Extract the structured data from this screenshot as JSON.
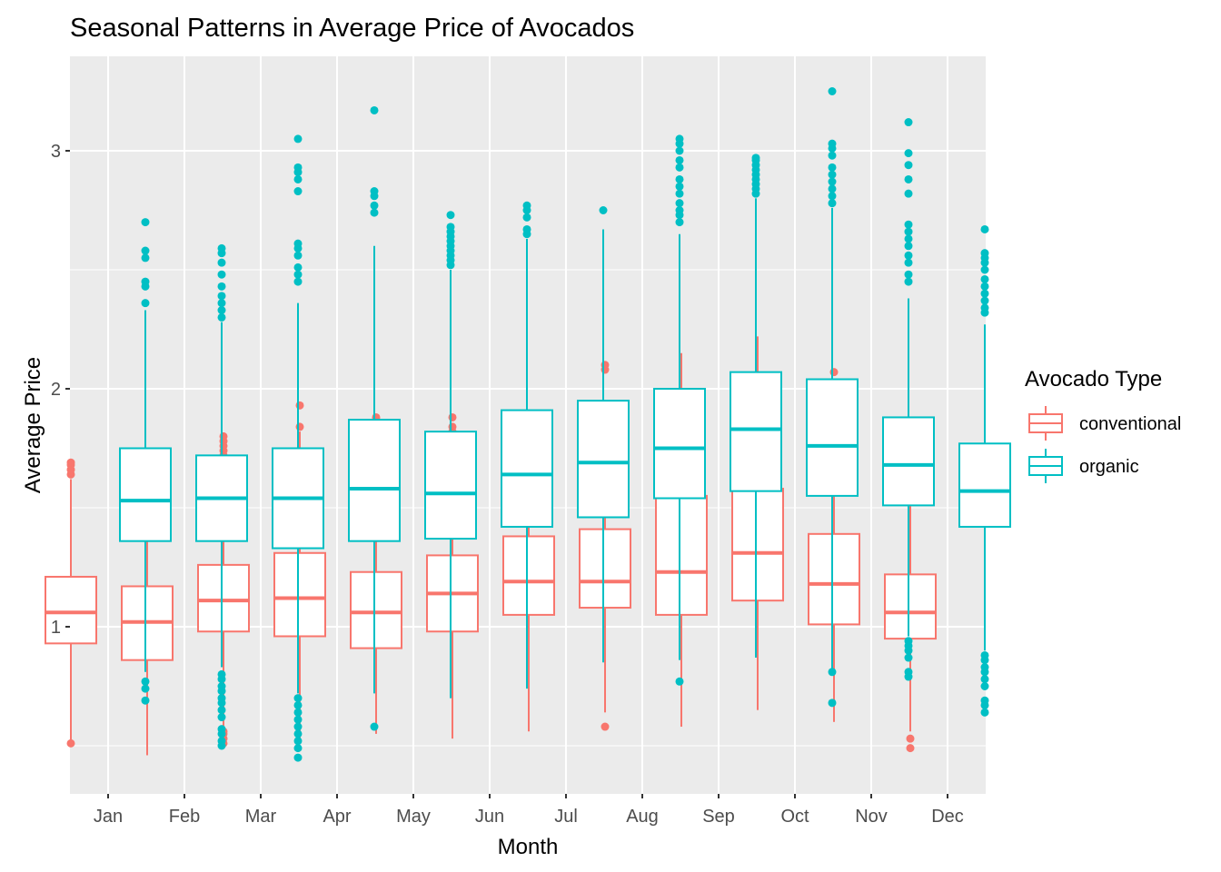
{
  "chart_data": {
    "type": "boxplot",
    "title": "Seasonal Patterns in Average Price of Avocados",
    "xlabel": "Month",
    "ylabel": "Average Price",
    "categories": [
      "Jan",
      "Feb",
      "Mar",
      "Apr",
      "May",
      "Jun",
      "Jul",
      "Aug",
      "Sep",
      "Oct",
      "Nov",
      "Dec"
    ],
    "y_ticks": [
      1,
      2,
      3
    ],
    "ylim": [
      0.42,
      3.35
    ],
    "grid": true,
    "legend": {
      "title": "Avocado Type",
      "position": "right"
    },
    "series": [
      {
        "name": "conventional",
        "color": "#F8766D",
        "boxes": [
          {
            "whisker_low": 0.52,
            "q1": 0.93,
            "median": 1.06,
            "q3": 1.21,
            "whisker_high": 1.62,
            "outliers": [
              0.51,
              1.64,
              1.66,
              1.68,
              1.69
            ]
          },
          {
            "whisker_low": 0.46,
            "q1": 0.86,
            "median": 1.02,
            "q3": 1.17,
            "whisker_high": 1.61,
            "outliers": [
              1.66,
              1.68,
              1.7,
              1.71
            ]
          },
          {
            "whisker_low": 0.52,
            "q1": 0.98,
            "median": 1.11,
            "q3": 1.26,
            "whisker_high": 1.66,
            "outliers": [
              0.51,
              0.53,
              0.55,
              0.56,
              1.68,
              1.7,
              1.72,
              1.74,
              1.76,
              1.78,
              1.8
            ]
          },
          {
            "whisker_low": 0.51,
            "q1": 0.96,
            "median": 1.12,
            "q3": 1.31,
            "whisker_high": 1.82,
            "outliers": [
              1.84,
              1.93
            ]
          },
          {
            "whisker_low": 0.55,
            "q1": 0.91,
            "median": 1.06,
            "q3": 1.23,
            "whisker_high": 1.71,
            "outliers": [
              1.73,
              1.75,
              1.77,
              1.79,
              1.81,
              1.83,
              1.85,
              1.87,
              1.88
            ]
          },
          {
            "whisker_low": 0.53,
            "q1": 0.98,
            "median": 1.14,
            "q3": 1.3,
            "whisker_high": 1.78,
            "outliers": [
              1.8,
              1.82,
              1.84,
              1.88
            ]
          },
          {
            "whisker_low": 0.56,
            "q1": 1.05,
            "median": 1.19,
            "q3": 1.38,
            "whisker_high": 1.76,
            "outliers": []
          },
          {
            "whisker_low": 0.64,
            "q1": 1.08,
            "median": 1.19,
            "q3": 1.41,
            "whisker_high": 1.89,
            "outliers": [
              0.58,
              1.93,
              2.08,
              2.1
            ]
          },
          {
            "whisker_low": 0.58,
            "q1": 1.05,
            "median": 1.23,
            "q3": 1.55,
            "whisker_high": 2.15,
            "outliers": []
          },
          {
            "whisker_low": 0.65,
            "q1": 1.11,
            "median": 1.31,
            "q3": 1.58,
            "whisker_high": 2.22,
            "outliers": []
          },
          {
            "whisker_low": 0.6,
            "q1": 1.01,
            "median": 1.18,
            "q3": 1.39,
            "whisker_high": 1.94,
            "outliers": [
              2.07
            ]
          },
          {
            "whisker_low": 0.56,
            "q1": 0.95,
            "median": 1.06,
            "q3": 1.22,
            "whisker_high": 1.62,
            "outliers": [
              0.49,
              0.53,
              1.65,
              1.66
            ]
          }
        ]
      },
      {
        "name": "organic",
        "color": "#00BFC4",
        "boxes": [
          {
            "whisker_low": 0.81,
            "q1": 1.36,
            "median": 1.53,
            "q3": 1.75,
            "whisker_high": 2.33,
            "outliers": [
              0.69,
              0.74,
              0.77,
              2.36,
              2.43,
              2.45,
              2.55,
              2.58,
              2.7
            ]
          },
          {
            "whisker_low": 0.83,
            "q1": 1.36,
            "median": 1.54,
            "q3": 1.72,
            "whisker_high": 2.28,
            "outliers": [
              0.5,
              0.52,
              0.55,
              0.57,
              0.62,
              0.65,
              0.68,
              0.7,
              0.73,
              0.75,
              0.78,
              0.8,
              2.3,
              2.33,
              2.36,
              2.39,
              2.43,
              2.48,
              2.53,
              2.57,
              2.59
            ]
          },
          {
            "whisker_low": 0.72,
            "q1": 1.33,
            "median": 1.54,
            "q3": 1.75,
            "whisker_high": 2.36,
            "outliers": [
              0.45,
              0.49,
              0.52,
              0.55,
              0.58,
              0.61,
              0.64,
              0.67,
              0.7,
              2.45,
              2.48,
              2.51,
              2.56,
              2.59,
              2.61,
              2.83,
              2.88,
              2.91,
              2.93,
              3.05
            ]
          },
          {
            "whisker_low": 0.72,
            "q1": 1.36,
            "median": 1.58,
            "q3": 1.87,
            "whisker_high": 2.6,
            "outliers": [
              0.58,
              2.74,
              2.77,
              2.81,
              2.83,
              3.17
            ]
          },
          {
            "whisker_low": 0.7,
            "q1": 1.37,
            "median": 1.56,
            "q3": 1.82,
            "whisker_high": 2.5,
            "outliers": [
              2.52,
              2.54,
              2.56,
              2.58,
              2.6,
              2.62,
              2.64,
              2.66,
              2.68,
              2.73
            ]
          },
          {
            "whisker_low": 0.74,
            "q1": 1.42,
            "median": 1.64,
            "q3": 1.91,
            "whisker_high": 2.63,
            "outliers": [
              2.65,
              2.67,
              2.72,
              2.75,
              2.77
            ]
          },
          {
            "whisker_low": 0.85,
            "q1": 1.46,
            "median": 1.69,
            "q3": 1.95,
            "whisker_high": 2.67,
            "outliers": [
              2.75
            ]
          },
          {
            "whisker_low": 0.86,
            "q1": 1.54,
            "median": 1.75,
            "q3": 2.0,
            "whisker_high": 2.65,
            "outliers": [
              0.77,
              2.7,
              2.73,
              2.75,
              2.78,
              2.82,
              2.85,
              2.88,
              2.93,
              2.96,
              3.0,
              3.03,
              3.05
            ]
          },
          {
            "whisker_low": 0.87,
            "q1": 1.57,
            "median": 1.83,
            "q3": 2.07,
            "whisker_high": 2.8,
            "outliers": [
              2.82,
              2.84,
              2.86,
              2.88,
              2.9,
              2.92,
              2.94,
              2.96,
              2.97
            ]
          },
          {
            "whisker_low": 0.82,
            "q1": 1.55,
            "median": 1.76,
            "q3": 2.04,
            "whisker_high": 2.76,
            "outliers": [
              0.68,
              0.81,
              2.78,
              2.81,
              2.84,
              2.87,
              2.9,
              2.93,
              2.98,
              3.01,
              3.03,
              3.25
            ]
          },
          {
            "whisker_low": 0.96,
            "q1": 1.51,
            "median": 1.68,
            "q3": 1.88,
            "whisker_high": 2.38,
            "outliers": [
              0.79,
              0.81,
              0.87,
              0.9,
              0.92,
              0.94,
              2.45,
              2.48,
              2.53,
              2.56,
              2.6,
              2.63,
              2.66,
              2.69,
              2.82,
              2.88,
              2.94,
              2.99,
              3.12
            ]
          },
          {
            "whisker_low": 0.9,
            "q1": 1.42,
            "median": 1.57,
            "q3": 1.77,
            "whisker_high": 2.27,
            "outliers": [
              0.64,
              0.67,
              0.69,
              0.75,
              0.78,
              0.81,
              0.83,
              0.86,
              0.88,
              2.32,
              2.34,
              2.37,
              2.4,
              2.43,
              2.46,
              2.5,
              2.53,
              2.55,
              2.57,
              2.67
            ]
          }
        ]
      }
    ]
  }
}
